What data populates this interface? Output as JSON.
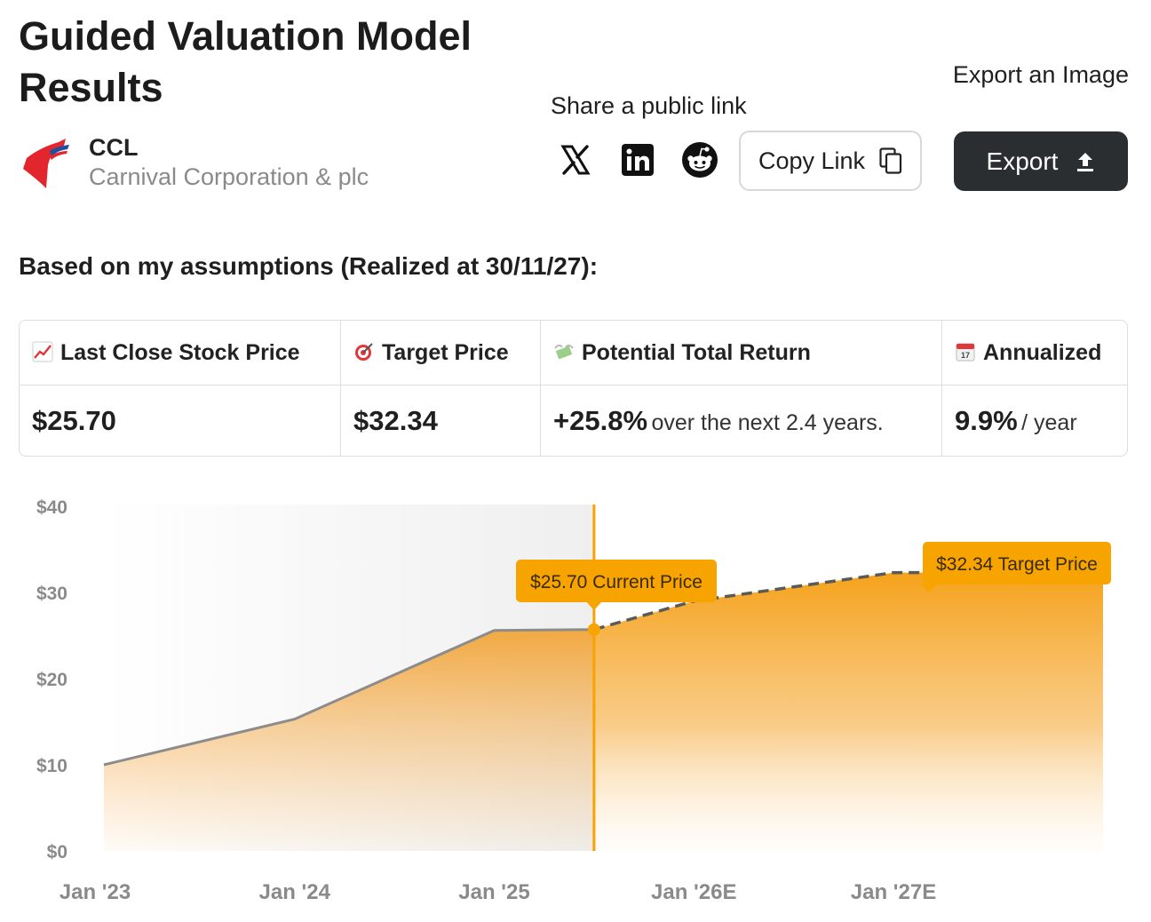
{
  "header": {
    "title": "Guided Valuation Model Results",
    "ticker": "CCL",
    "company_name": "Carnival Corporation & plc",
    "brand_color": "#e3262d",
    "accent_color": "#1f4fa0"
  },
  "share": {
    "label": "Share a public link",
    "icons": [
      "x-logo-icon",
      "linkedin-icon",
      "reddit-icon"
    ],
    "copy_label": "Copy Link",
    "copy_icon": "copy-icon"
  },
  "export": {
    "label": "Export an Image",
    "button_label": "Export",
    "icon": "upload-icon"
  },
  "assumptions_heading": "Based on my assumptions (Realized at 30/11/27):",
  "stats": {
    "columns": [
      {
        "icon": "chart-increasing-icon",
        "label": "Last Close Stock Price",
        "value": "$25.70",
        "suffix": ""
      },
      {
        "icon": "target-icon",
        "label": "Target Price",
        "value": "$32.34",
        "suffix": ""
      },
      {
        "icon": "money-wings-icon",
        "label": "Potential Total Return",
        "value": "+25.8%",
        "suffix": "over the next 2.4 years."
      },
      {
        "icon": "calendar-icon",
        "label": "Annualized",
        "value": "9.9%",
        "suffix": "/ year"
      }
    ]
  },
  "colors": {
    "orange": "#f7a400",
    "history_line": "#8c8c8c",
    "forecast_line": "#5a5a5a"
  },
  "chart_data": {
    "type": "area",
    "title": "",
    "xlabel": "",
    "ylabel": "",
    "x_ticks": [
      "Jan '23",
      "Jan '24",
      "Jan '25",
      "Jan '26E",
      "Jan '27E"
    ],
    "y_ticks": [
      "$0",
      "$10",
      "$20",
      "$30",
      "$40"
    ],
    "ylim": [
      0,
      40
    ],
    "series": [
      {
        "kind": "historical",
        "points": [
          {
            "x": "2023-01",
            "y": 10.0
          },
          {
            "x": "2024-01",
            "y": 15.3
          },
          {
            "x": "2025-01",
            "y": 25.6
          },
          {
            "x": "2025-07",
            "y": 25.7
          }
        ]
      },
      {
        "kind": "forecast",
        "points": [
          {
            "x": "2025-07",
            "y": 25.7
          },
          {
            "x": "2026-01",
            "y": 29.0
          },
          {
            "x": "2027-01",
            "y": 32.3
          },
          {
            "x": "2027-11",
            "y": 32.34
          }
        ]
      }
    ],
    "annotations": [
      {
        "label": "$25.70 Current Price",
        "x": "2025-07",
        "y": 25.7
      },
      {
        "label": "$32.34 Target Price",
        "x": "2027-11",
        "y": 32.34
      }
    ]
  }
}
